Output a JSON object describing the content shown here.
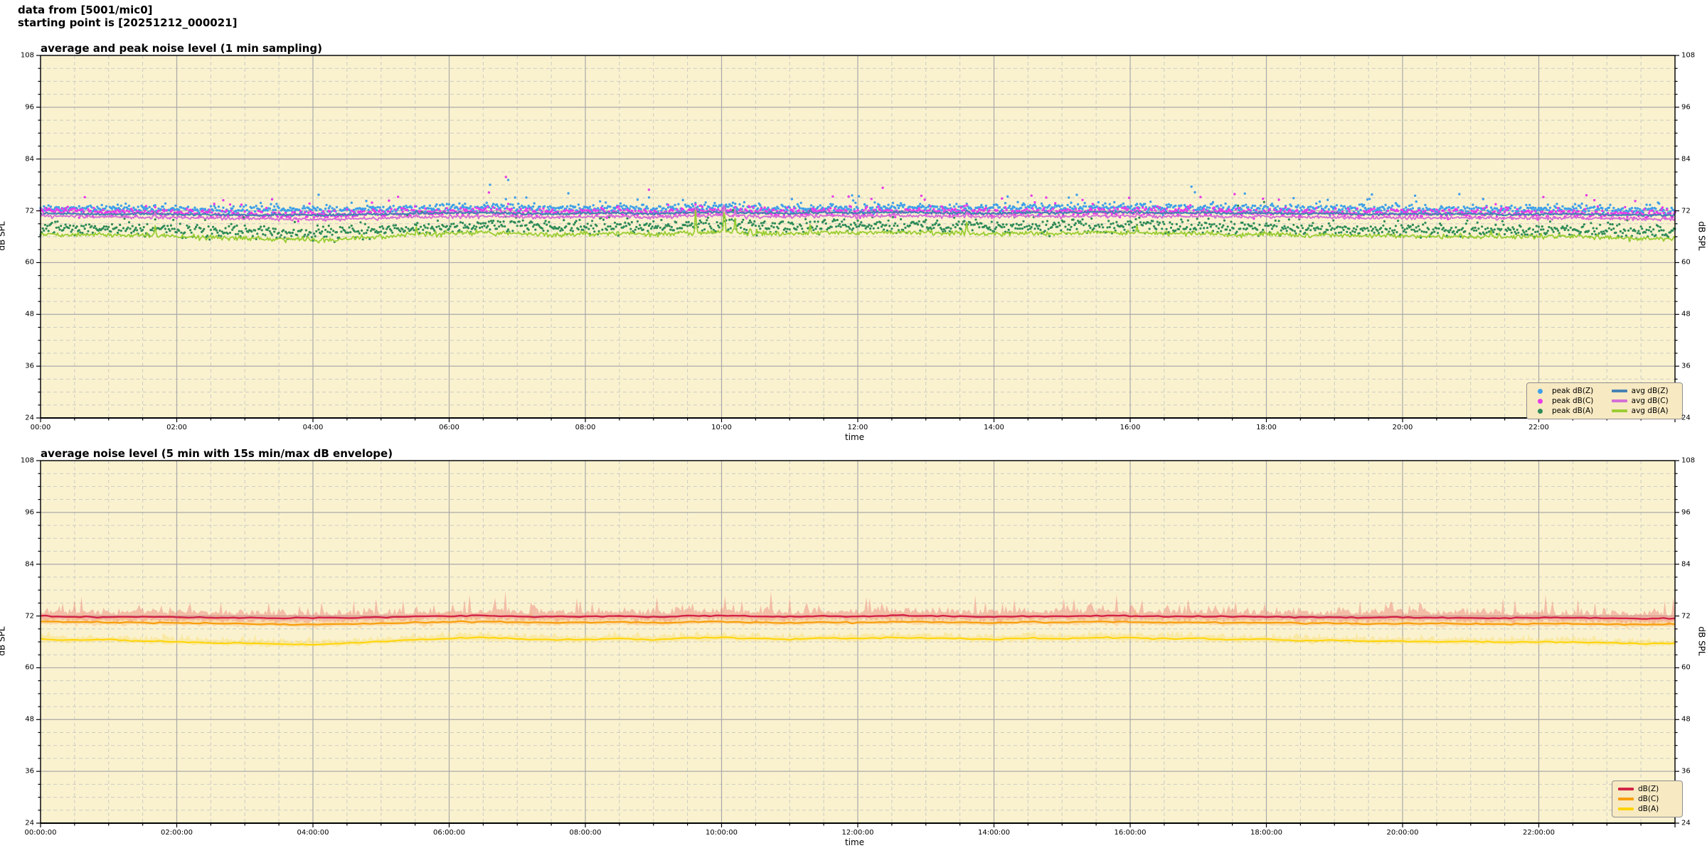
{
  "header": {
    "line1": "data from [5001/mic0]",
    "line2": "starting point is [20251212_000021]"
  },
  "colors": {
    "plot_background": "#FAF2CF",
    "grid_major": "#A9A9A9",
    "grid_minor": "#CBCBC2",
    "spine": "#000000"
  },
  "chart_data": [
    {
      "type": "line+scatter",
      "title": "average and peak noise level (1 min sampling)",
      "xlabel": "time",
      "ylabel_left": "dB SPL",
      "ylabel_right": "dB SPL",
      "x_range_hours": [
        0,
        24
      ],
      "x_major_tick_hours": 2,
      "x_minor_tick_hours": 0.5,
      "xtick_labels": [
        "00:00",
        "02:00",
        "04:00",
        "06:00",
        "08:00",
        "10:00",
        "12:00",
        "14:00",
        "16:00",
        "18:00",
        "20:00",
        "22:00"
      ],
      "ylim": [
        24,
        108
      ],
      "yticks": [
        24,
        36,
        48,
        60,
        72,
        84,
        96,
        108
      ],
      "y_minor_step": 3,
      "grid": true,
      "legend_position": "lower right",
      "anchor_step_hours": 0.5,
      "sampling_note": "1 min sampling",
      "events": [
        {
          "hour": 1.68,
          "amp": 2.8
        },
        {
          "hour": 5.52,
          "amp": 2.2
        },
        {
          "hour": 9.62,
          "amp": 5.0
        },
        {
          "hour": 10.04,
          "amp": 6.0
        },
        {
          "hour": 10.2,
          "amp": 3.0
        },
        {
          "hour": 11.3,
          "amp": 2.0
        },
        {
          "hour": 13.6,
          "amp": 2.5
        },
        {
          "hour": 16.1,
          "amp": 2.0
        },
        {
          "hour": 21.3,
          "amp": 1.5
        }
      ],
      "series": [
        {
          "label": "peak dB(Z)",
          "kind": "scatter",
          "color": "#3FA0E8",
          "jitter": 0.5,
          "outlier_rate": 0.03,
          "outlier_scale": 2.0,
          "event_scale": 0.3,
          "dot_r": 1.7,
          "anchors": [
            72.6,
            72.5,
            72.4,
            72.5,
            72.4,
            72.3,
            72.2,
            72.3,
            72.2,
            72.3,
            72.4,
            72.6,
            72.7,
            72.8,
            72.6,
            72.5,
            72.6,
            72.7,
            72.5,
            72.8,
            72.9,
            72.7,
            72.6,
            72.8,
            72.7,
            72.9,
            72.8,
            72.7,
            72.6,
            72.8,
            72.7,
            72.9,
            72.8,
            72.7,
            72.8,
            72.6,
            72.7,
            72.5,
            72.6,
            72.4,
            72.5,
            72.4,
            72.5,
            72.3,
            72.4,
            72.5,
            72.3,
            72.2
          ]
        },
        {
          "label": "peak dB(C)",
          "kind": "scatter",
          "color": "#E83BE8",
          "jitter": 0.5,
          "outlier_rate": 0.03,
          "outlier_scale": 2.2,
          "event_scale": 0.45,
          "dot_r": 1.7,
          "anchors": [
            71.9,
            71.8,
            71.7,
            71.6,
            71.5,
            71.4,
            71.3,
            71.2,
            71.1,
            71.2,
            71.4,
            71.6,
            71.8,
            71.9,
            71.7,
            71.6,
            71.7,
            71.8,
            71.6,
            71.9,
            72.0,
            71.8,
            71.7,
            71.9,
            71.8,
            72.0,
            71.9,
            71.8,
            71.7,
            71.9,
            71.8,
            72.0,
            71.9,
            71.8,
            71.9,
            71.7,
            71.8,
            71.6,
            71.6,
            71.4,
            71.5,
            71.4,
            71.5,
            71.3,
            71.4,
            71.5,
            71.3,
            71.2
          ]
        },
        {
          "label": "peak dB(A)",
          "kind": "scatter",
          "color": "#2E8B57",
          "jitter": 0.8,
          "outlier_rate": 0.025,
          "outlier_scale": 1.8,
          "event_scale": 0.6,
          "dot_r": 1.6,
          "anchors": [
            68.2,
            68.0,
            68.1,
            67.8,
            67.6,
            67.4,
            67.2,
            67.0,
            66.9,
            67.2,
            67.6,
            68.0,
            68.4,
            68.6,
            68.3,
            68.1,
            68.2,
            68.4,
            68.1,
            68.5,
            68.7,
            68.4,
            68.2,
            68.5,
            68.4,
            68.6,
            68.5,
            68.4,
            68.2,
            68.5,
            68.3,
            68.6,
            68.5,
            68.3,
            68.4,
            68.1,
            68.2,
            67.9,
            68.0,
            67.7,
            67.8,
            67.6,
            67.7,
            67.5,
            67.6,
            67.7,
            67.4,
            67.2
          ]
        },
        {
          "label": "avg dB(Z)",
          "kind": "line",
          "color": "#4682B4",
          "sigma": 0.12,
          "width": 2.2,
          "event_scale": 0.3,
          "anchors": [
            71.4,
            71.3,
            71.2,
            71.3,
            71.2,
            71.1,
            71.0,
            71.1,
            71.0,
            71.1,
            71.2,
            71.4,
            71.5,
            71.6,
            71.4,
            71.3,
            71.4,
            71.5,
            71.3,
            71.6,
            71.7,
            71.5,
            71.4,
            71.6,
            71.5,
            71.7,
            71.6,
            71.5,
            71.4,
            71.6,
            71.5,
            71.7,
            71.6,
            71.5,
            71.6,
            71.4,
            71.5,
            71.3,
            71.4,
            71.2,
            71.3,
            71.2,
            71.3,
            71.1,
            71.2,
            71.3,
            71.1,
            71.0
          ]
        },
        {
          "label": "avg dB(C)",
          "kind": "line",
          "color": "#D56FD5",
          "sigma": 0.18,
          "width": 2.0,
          "event_scale": 0.45,
          "anchors": [
            70.8,
            70.7,
            70.6,
            70.5,
            70.4,
            70.3,
            70.2,
            70.1,
            70.0,
            70.1,
            70.3,
            70.5,
            70.7,
            70.8,
            70.6,
            70.5,
            70.6,
            70.7,
            70.5,
            70.8,
            70.9,
            70.7,
            70.6,
            70.8,
            70.7,
            70.9,
            70.8,
            70.7,
            70.6,
            70.8,
            70.7,
            70.9,
            70.8,
            70.7,
            70.8,
            70.6,
            70.7,
            70.5,
            70.5,
            70.3,
            70.4,
            70.3,
            70.4,
            70.2,
            70.3,
            70.4,
            70.2,
            70.1
          ]
        },
        {
          "label": "avg dB(A)",
          "kind": "line",
          "color": "#9ACD32",
          "sigma": 0.28,
          "width": 1.8,
          "event_scale": 1.0,
          "anchors": [
            66.6,
            66.4,
            66.5,
            66.2,
            66.0,
            65.8,
            65.6,
            65.4,
            65.3,
            65.6,
            66.0,
            66.4,
            66.8,
            67.0,
            66.7,
            66.5,
            66.6,
            66.8,
            66.5,
            66.9,
            67.1,
            66.8,
            66.6,
            66.9,
            66.8,
            67.0,
            66.9,
            66.8,
            66.6,
            66.9,
            66.7,
            67.0,
            66.9,
            66.7,
            66.8,
            66.5,
            66.6,
            66.3,
            66.4,
            66.1,
            66.2,
            66.0,
            66.1,
            65.9,
            66.0,
            66.1,
            65.8,
            65.6
          ]
        }
      ]
    },
    {
      "type": "line+band",
      "title": "average noise level (5 min with 15s min/max dB envelope)",
      "xlabel": "time",
      "ylabel_left": "dB SPL",
      "ylabel_right": "dB SPL",
      "x_range_hours": [
        0,
        24
      ],
      "x_major_tick_hours": 2,
      "x_minor_tick_hours": 0.5,
      "xtick_labels": [
        "00:00:00",
        "02:00:00",
        "04:00:00",
        "06:00:00",
        "08:00:00",
        "10:00:00",
        "12:00:00",
        "14:00:00",
        "16:00:00",
        "18:00:00",
        "20:00:00",
        "22:00:00"
      ],
      "ylim": [
        24,
        108
      ],
      "yticks": [
        24,
        36,
        48,
        60,
        72,
        84,
        96,
        108
      ],
      "y_minor_step": 3,
      "grid": true,
      "legend_position": "lower right",
      "anchor_step_hours": 0.5,
      "sampling_note": "5 min averages, 15 s min/max envelope",
      "events": [
        {
          "hour": 5.52,
          "amp": 1.6
        },
        {
          "hour": 9.62,
          "amp": 1.8
        },
        {
          "hour": 10.04,
          "amp": 2.2
        },
        {
          "hour": 12.55,
          "amp": 1.8
        },
        {
          "hour": 16.1,
          "amp": 1.5
        },
        {
          "hour": 21.4,
          "amp": 1.3
        }
      ],
      "series": [
        {
          "label": "dB(Z)",
          "kind": "line",
          "color": "#D42345",
          "width": 2.4,
          "sigma": 0.07,
          "event_scale": 0.15,
          "band_color": "rgba(235,125,115,0.45)",
          "band_up": 0.55,
          "band_dn": 0.45,
          "spike_rate": 0.06,
          "spike_amp": 2.4,
          "band_event": 0.9,
          "anchors": [
            71.9,
            71.8,
            71.7,
            71.8,
            71.7,
            71.6,
            71.6,
            71.5,
            71.5,
            71.6,
            71.7,
            71.9,
            72.0,
            72.1,
            71.9,
            71.8,
            71.9,
            72.0,
            71.8,
            72.0,
            72.1,
            71.9,
            71.8,
            72.0,
            71.9,
            72.1,
            72.0,
            71.9,
            71.8,
            72.0,
            71.9,
            72.1,
            72.0,
            71.9,
            71.9,
            71.8,
            71.8,
            71.7,
            71.7,
            71.6,
            71.7,
            71.6,
            71.6,
            71.5,
            71.6,
            71.6,
            71.5,
            71.4
          ]
        },
        {
          "label": "dB(C)",
          "kind": "line",
          "color": "#F89E0B",
          "width": 2.2,
          "sigma": 0.07,
          "event_scale": 0.15,
          "band_color": "rgba(250,175,95,0.35)",
          "band_up": 0.4,
          "band_dn": 0.3,
          "spike_rate": 0.03,
          "spike_amp": 1.2,
          "band_event": 0.4,
          "anchors": [
            70.7,
            70.6,
            70.5,
            70.5,
            70.4,
            70.3,
            70.2,
            70.1,
            70.0,
            70.1,
            70.3,
            70.5,
            70.6,
            70.7,
            70.5,
            70.4,
            70.5,
            70.6,
            70.4,
            70.6,
            70.7,
            70.5,
            70.4,
            70.6,
            70.5,
            70.7,
            70.6,
            70.5,
            70.4,
            70.6,
            70.5,
            70.7,
            70.6,
            70.5,
            70.5,
            70.4,
            70.4,
            70.3,
            70.3,
            70.2,
            70.3,
            70.2,
            70.2,
            70.1,
            70.2,
            70.2,
            70.1,
            70.0
          ]
        },
        {
          "label": "dB(A)",
          "kind": "line",
          "color": "#FFD400",
          "width": 1.9,
          "sigma": 0.07,
          "event_scale": 0.2,
          "band_color": "rgba(250,222,110,0.45)",
          "band_up": 0.35,
          "band_dn": 0.3,
          "spike_rate": 0.02,
          "spike_amp": 0.8,
          "band_event": 0.3,
          "anchors": [
            66.6,
            66.4,
            66.5,
            66.2,
            66.0,
            65.8,
            65.7,
            65.5,
            65.4,
            65.7,
            66.1,
            66.5,
            66.8,
            67.0,
            66.7,
            66.5,
            66.6,
            66.8,
            66.5,
            66.9,
            67.0,
            66.8,
            66.6,
            66.9,
            66.8,
            67.0,
            66.9,
            66.8,
            66.6,
            66.9,
            66.7,
            67.0,
            66.9,
            66.7,
            66.8,
            66.5,
            66.6,
            66.3,
            66.4,
            66.1,
            66.2,
            66.0,
            66.1,
            65.9,
            66.0,
            66.0,
            65.8,
            65.6
          ]
        }
      ]
    }
  ]
}
